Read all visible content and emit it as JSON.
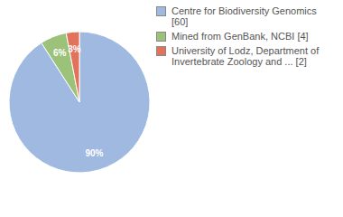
{
  "chart_data": {
    "type": "pie",
    "categories": [
      "Centre for Biodiversity Genomics [60]",
      "Mined from GenBank, NCBI [4]",
      "University of Lodz, Department of Invertebrate Zoology and ... [2]"
    ],
    "values": [
      90,
      6,
      3
    ],
    "value_labels": [
      "90%",
      "6%",
      "3%"
    ],
    "colors": [
      "#9fb9e0",
      "#9cc27a",
      "#e0735a"
    ],
    "data_labels": true,
    "legend": "upper right"
  }
}
